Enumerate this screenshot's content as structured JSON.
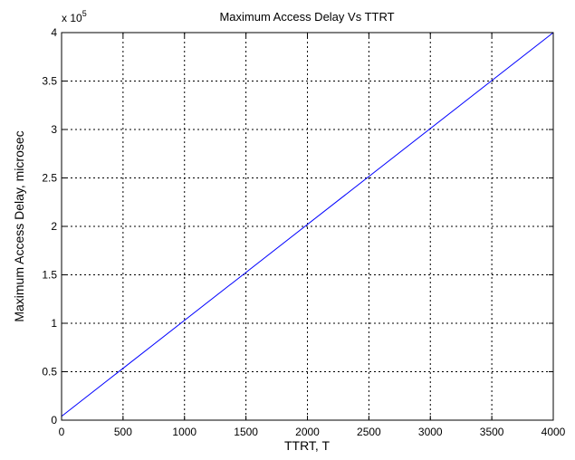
{
  "colors": {
    "background": "#ffffff",
    "axes": "#000000",
    "grid": "#000000",
    "line": "#0000ff"
  },
  "chart_data": {
    "type": "line",
    "title": "Maximum Access Delay Vs TTRT",
    "xlabel": "TTRT, T",
    "ylabel": "Maximum Access Delay, microsec",
    "y_multiplier": "x 10",
    "y_exponent": "5",
    "xlim": [
      0,
      4000
    ],
    "ylim": [
      0,
      400000
    ],
    "x_ticks": [
      0,
      500,
      1000,
      1500,
      2000,
      2500,
      3000,
      3500,
      4000
    ],
    "x_tick_labels": [
      "0",
      "500",
      "1000",
      "1500",
      "2000",
      "2500",
      "3000",
      "3500",
      "4000"
    ],
    "y_ticks": [
      0,
      50000,
      100000,
      150000,
      200000,
      250000,
      300000,
      350000,
      400000
    ],
    "y_tick_labels": [
      "0",
      "0.5",
      "1",
      "1.5",
      "2",
      "2.5",
      "3",
      "3.5",
      "4"
    ],
    "grid": true,
    "grid_style": "dotted",
    "series": [
      {
        "color": "#0000ff",
        "x": [
          0,
          4000
        ],
        "y": [
          4000,
          400000
        ]
      }
    ]
  }
}
